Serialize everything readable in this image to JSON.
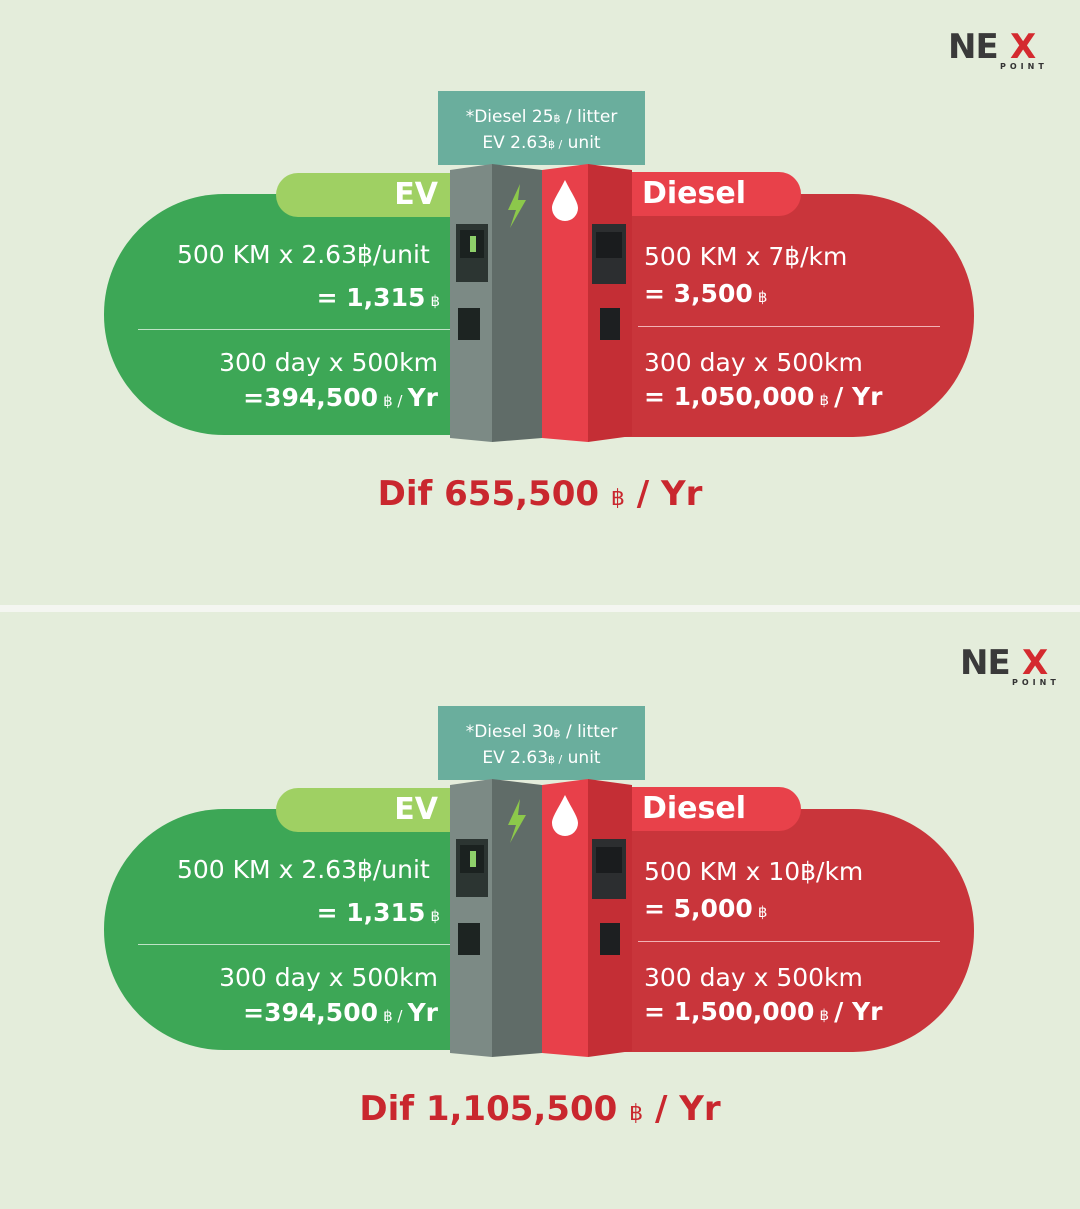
{
  "brand": {
    "logo_main": "NE",
    "logo_x": "X",
    "logo_sub": "POINT"
  },
  "colors": {
    "ev": "#3da756",
    "ev_tab": "#9fd063",
    "diesel": "#c9353b",
    "diesel_tab": "#e8414a",
    "rate_box": "#6aae9d",
    "accent_text": "#c9272e"
  },
  "icons": [
    "lightning-bolt-icon",
    "fuel-drop-icon",
    "charging-station-icon",
    "fuel-pump-icon"
  ],
  "panels": [
    {
      "rate_line1_a": "*Diesel 25",
      "rate_line1_cur": "฿",
      "rate_line1_b": " / litter",
      "rate_line2_a": "EV 2.63",
      "rate_line2_cur": "฿ /",
      "rate_line2_b": " unit",
      "ev_label": "EV",
      "ev_calc": "500 KM x 2.63฿/unit",
      "ev_result": "= 1,315",
      "ev_result_cur": "฿",
      "ev_year_calc": "300 day x 500km",
      "ev_year_result": "=394,500",
      "ev_year_cur": "฿ /",
      "ev_year_unit": "Yr",
      "diesel_label": "Diesel",
      "diesel_calc": "500 KM x 7฿/km",
      "diesel_result": "= 3,500",
      "diesel_result_cur": "฿",
      "diesel_year_calc": "300 day x 500km",
      "diesel_year_result": "= 1,050,000",
      "diesel_year_cur": "฿",
      "diesel_year_unit": "/ Yr",
      "dif_value": "Dif 655,500",
      "dif_cur": "฿",
      "dif_unit": "/ Yr"
    },
    {
      "rate_line1_a": "*Diesel 30",
      "rate_line1_cur": "฿",
      "rate_line1_b": " / litter",
      "rate_line2_a": "EV 2.63",
      "rate_line2_cur": "฿ /",
      "rate_line2_b": " unit",
      "ev_label": "EV",
      "ev_calc": "500 KM x 2.63฿/unit",
      "ev_result": "= 1,315",
      "ev_result_cur": "฿",
      "ev_year_calc": "300 day x 500km",
      "ev_year_result": "=394,500",
      "ev_year_cur": "฿ /",
      "ev_year_unit": "Yr",
      "diesel_label": "Diesel",
      "diesel_calc": "500 KM x 10฿/km",
      "diesel_result": "= 5,000",
      "diesel_result_cur": "฿",
      "diesel_year_calc": "300 day x 500km",
      "diesel_year_result": "= 1,500,000",
      "diesel_year_cur": "฿",
      "diesel_year_unit": "/ Yr",
      "dif_value": "Dif 1,105,500",
      "dif_cur": "฿",
      "dif_unit": "/ Yr"
    }
  ]
}
